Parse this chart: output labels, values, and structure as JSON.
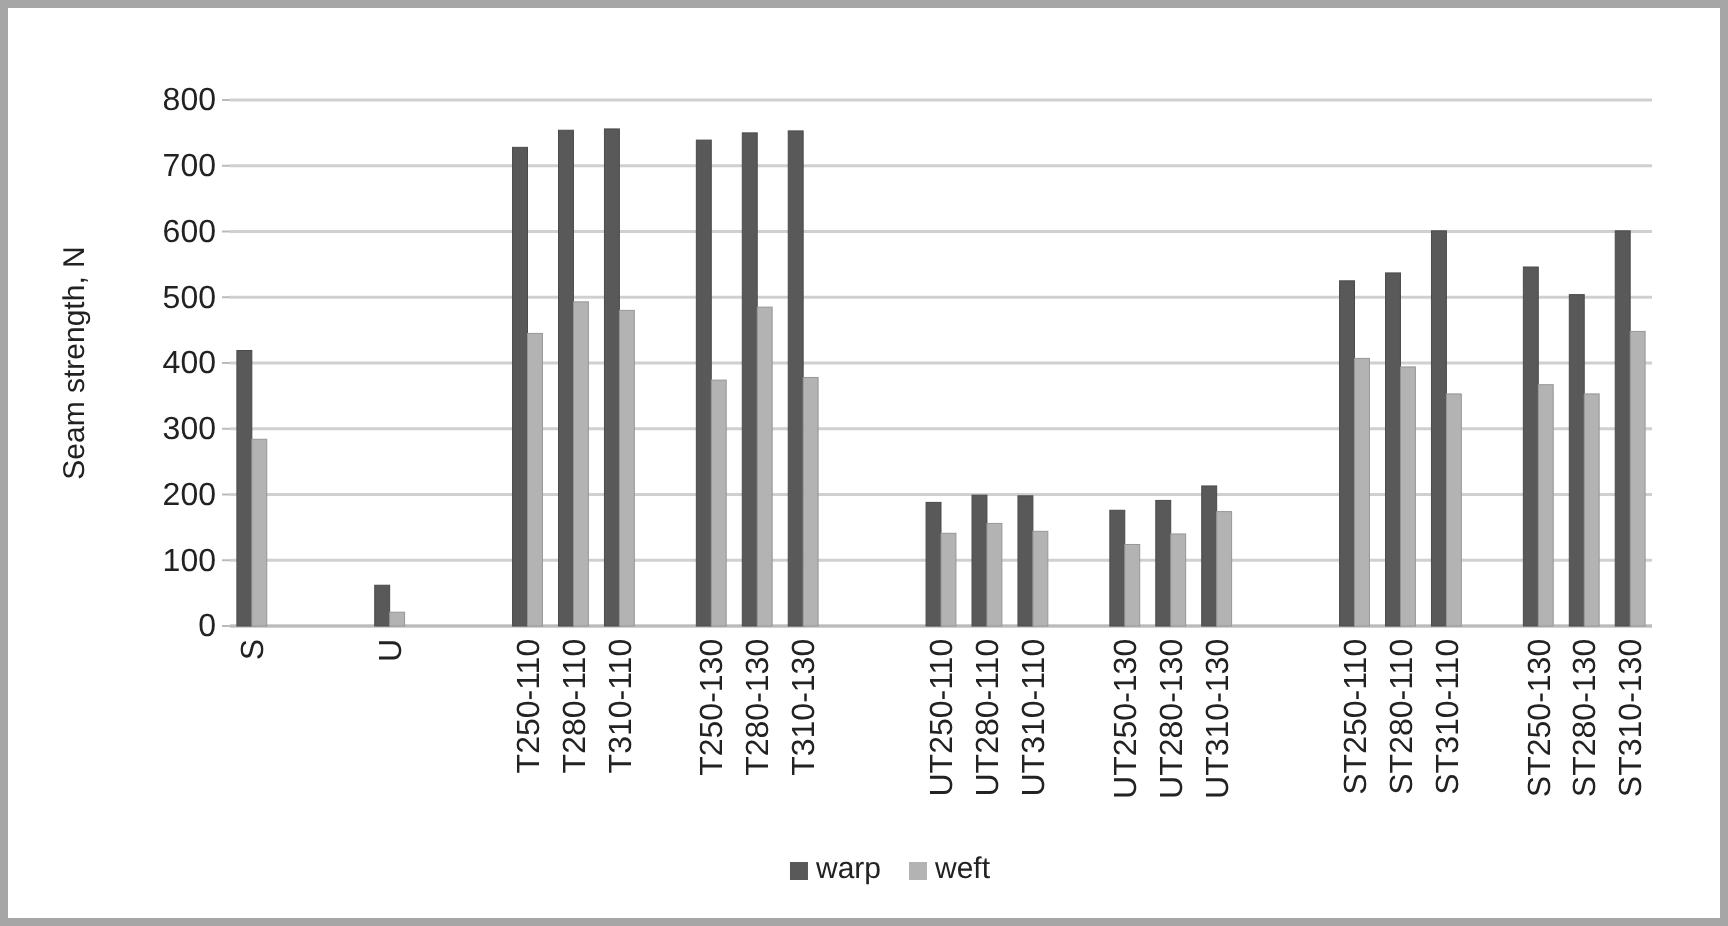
{
  "chart_data": {
    "type": "bar",
    "ylabel": "Seam strength, N",
    "categories": [
      "S",
      null,
      null,
      "U",
      null,
      null,
      "T250-110",
      "T280-110",
      "T310-110",
      null,
      "T250-130",
      "T280-130",
      "T310-130",
      null,
      null,
      "UT250-110",
      "UT280-110",
      "UT310-110",
      null,
      "UT250-130",
      "UT280-130",
      "UT310-130",
      null,
      null,
      "ST250-110",
      "ST280-110",
      "ST310-110",
      null,
      "ST250-130",
      "ST280-130",
      "ST310-130"
    ],
    "series": [
      {
        "name": "warp",
        "color": "#595959",
        "values": [
          419,
          null,
          null,
          62,
          null,
          null,
          728,
          754,
          756,
          null,
          739,
          750,
          753,
          null,
          null,
          188,
          199,
          198,
          null,
          176,
          191,
          213,
          null,
          null,
          525,
          537,
          601,
          null,
          546,
          504,
          601
        ]
      },
      {
        "name": "weft",
        "color": "#b3b3b3",
        "values": [
          284,
          null,
          null,
          21,
          null,
          null,
          445,
          493,
          480,
          null,
          374,
          485,
          378,
          null,
          null,
          141,
          156,
          144,
          null,
          124,
          140,
          174,
          null,
          null,
          407,
          394,
          353,
          null,
          367,
          353,
          448
        ]
      }
    ],
    "ylim": [
      0,
      800
    ],
    "yticks": [
      0,
      100,
      200,
      300,
      400,
      500,
      600,
      700,
      800
    ],
    "grid": "y",
    "legend": "bottom"
  }
}
